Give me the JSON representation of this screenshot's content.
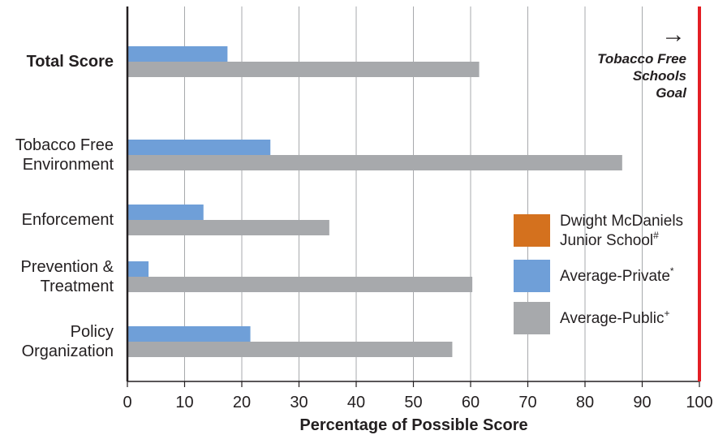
{
  "chart_data": {
    "type": "bar",
    "orientation": "horizontal",
    "categories": [
      {
        "lines": [
          "Total Score"
        ],
        "bold": true
      },
      {
        "lines": [
          "Tobacco Free",
          "Environment"
        ],
        "bold": false
      },
      {
        "lines": [
          "Enforcement"
        ],
        "bold": false
      },
      {
        "lines": [
          "Prevention &",
          "Treatment"
        ],
        "bold": false
      },
      {
        "lines": [
          "Policy",
          "Organization"
        ],
        "bold": false
      }
    ],
    "series": [
      {
        "name_lines": [
          "Dwight McDaniels",
          "Junior School"
        ],
        "name_sup": "#",
        "color": "#d4711e",
        "values": [
          0,
          0,
          0,
          0,
          0
        ]
      },
      {
        "name_lines": [
          "Average-Private"
        ],
        "name_sup": "*",
        "color": "#6f9fd8",
        "values": [
          17.5,
          25,
          13.3,
          3.7,
          21.5
        ]
      },
      {
        "name_lines": [
          "Average-Public"
        ],
        "name_sup": "+",
        "color": "#a7a9ac",
        "values": [
          61.5,
          86.5,
          35.3,
          60.3,
          56.8
        ]
      }
    ],
    "xlabel": "Percentage of Possible Score",
    "xlim": [
      0,
      100
    ],
    "xticks": [
      0,
      10,
      20,
      30,
      40,
      50,
      60,
      70,
      80,
      90,
      100
    ],
    "grid": true,
    "legend_position": "right",
    "goal": {
      "value": 100,
      "color": "#e31e24",
      "label_lines": [
        "Tobacco Free",
        "Schools",
        "Goal"
      ],
      "arrow": "→"
    }
  }
}
